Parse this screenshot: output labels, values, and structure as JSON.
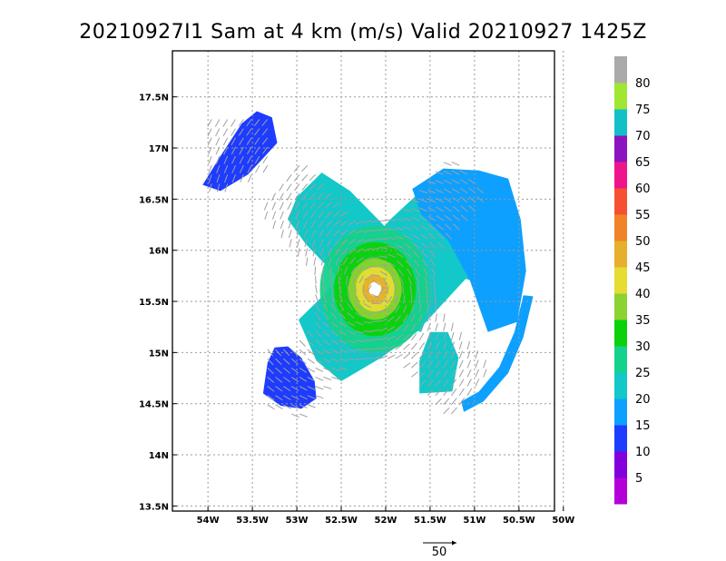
{
  "chart_data": {
    "type": "vector-field",
    "title": "20210927I1 Sam at 4 km (m/s) Valid 20210927 1425Z",
    "x_ticks": [
      "54W",
      "53.5W",
      "53W",
      "52.5W",
      "52W",
      "51.5W",
      "51W",
      "50.5W",
      "50W"
    ],
    "x_values": [
      -54,
      -53.5,
      -53,
      -52.5,
      -52,
      -51.5,
      -51,
      -50.5,
      -50
    ],
    "y_ticks": [
      "13.5N",
      "14N",
      "14.5N",
      "15N",
      "15.5N",
      "16N",
      "16.5N",
      "17N",
      "17.5N"
    ],
    "y_values": [
      13.5,
      14,
      14.5,
      15,
      15.5,
      16,
      16.5,
      17,
      17.5
    ],
    "xlim": [
      -54.4,
      -50.1
    ],
    "ylim": [
      13.45,
      17.95
    ],
    "grid": true,
    "center": {
      "lon": -52.12,
      "lat": 15.62
    },
    "colorbar": {
      "labels": [
        "5",
        "10",
        "15",
        "20",
        "25",
        "30",
        "35",
        "40",
        "45",
        "50",
        "55",
        "60",
        "65",
        "70",
        "75",
        "80"
      ],
      "colors": [
        "#b400d8",
        "#8200dc",
        "#1e3cff",
        "#0ea0ff",
        "#12c8c8",
        "#14d28c",
        "#0ad20a",
        "#8cd232",
        "#e6dc32",
        "#e6af2d",
        "#f08228",
        "#f55032",
        "#f0148c",
        "#8c14be",
        "#12c0c8",
        "#a0e632",
        "#aaaaaa"
      ]
    },
    "reference_vector": {
      "label": "50",
      "value": 50
    }
  }
}
